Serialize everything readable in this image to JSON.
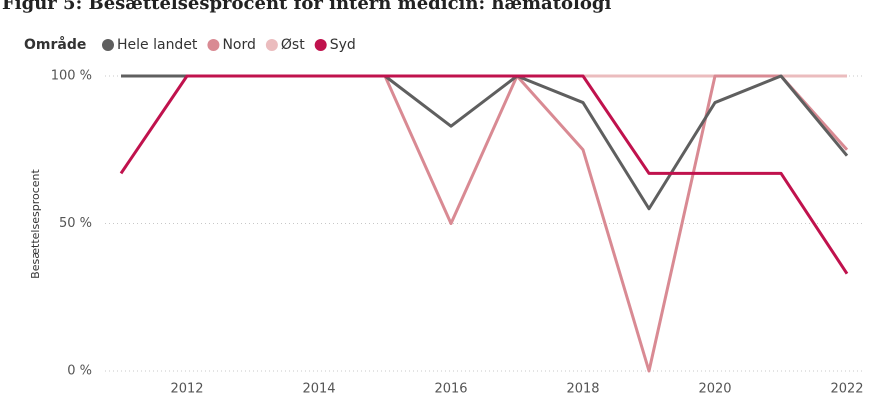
{
  "chart_data": {
    "type": "line",
    "title": "Figur 5: Besættelsesprocent for intern medicin: hæmatologi",
    "legend_title": "Område",
    "y_label": "Besættelsesprocent",
    "x": [
      2011,
      2012,
      2013,
      2014,
      2015,
      2016,
      2017,
      2018,
      2019,
      2020,
      2021,
      2022
    ],
    "series": [
      {
        "name": "Hele landet",
        "color": "#5f5f5f",
        "values": [
          100,
          100,
          100,
          100,
          100,
          83,
          100,
          91,
          55,
          91,
          100,
          73
        ]
      },
      {
        "name": "Nord",
        "color": "#d98a93",
        "values": [
          100,
          100,
          100,
          100,
          100,
          50,
          100,
          75,
          0,
          100,
          100,
          75
        ]
      },
      {
        "name": "Øst",
        "color": "#ebbcbe",
        "values": [
          100,
          100,
          100,
          100,
          100,
          100,
          100,
          100,
          100,
          100,
          100,
          100
        ]
      },
      {
        "name": "Syd",
        "color": "#c0124d",
        "values": [
          67,
          100,
          100,
          100,
          100,
          100,
          100,
          100,
          67,
          67,
          67,
          33
        ]
      }
    ],
    "xlim": [
      2011,
      2022
    ],
    "xticks": [
      2012,
      2014,
      2016,
      2018,
      2020,
      2022
    ],
    "ylim": [
      0,
      100
    ],
    "yticks": [
      {
        "value": 0,
        "label": "0 %"
      },
      {
        "value": 50,
        "label": "50 %"
      },
      {
        "value": 100,
        "label": "100 %"
      }
    ],
    "grid": true
  }
}
